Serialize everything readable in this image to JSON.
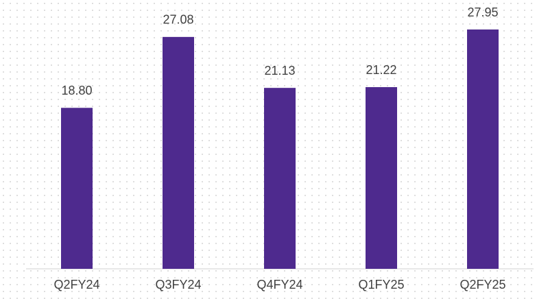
{
  "chart_data": {
    "type": "bar",
    "categories": [
      "Q2FY24",
      "Q3FY24",
      "Q4FY24",
      "Q1FY25",
      "Q2FY25"
    ],
    "values": [
      18.8,
      27.08,
      21.13,
      21.22,
      27.95
    ],
    "value_labels": [
      "18.80",
      "27.08",
      "21.13",
      "21.22",
      "27.95"
    ],
    "color": "#4e2a8e"
  }
}
